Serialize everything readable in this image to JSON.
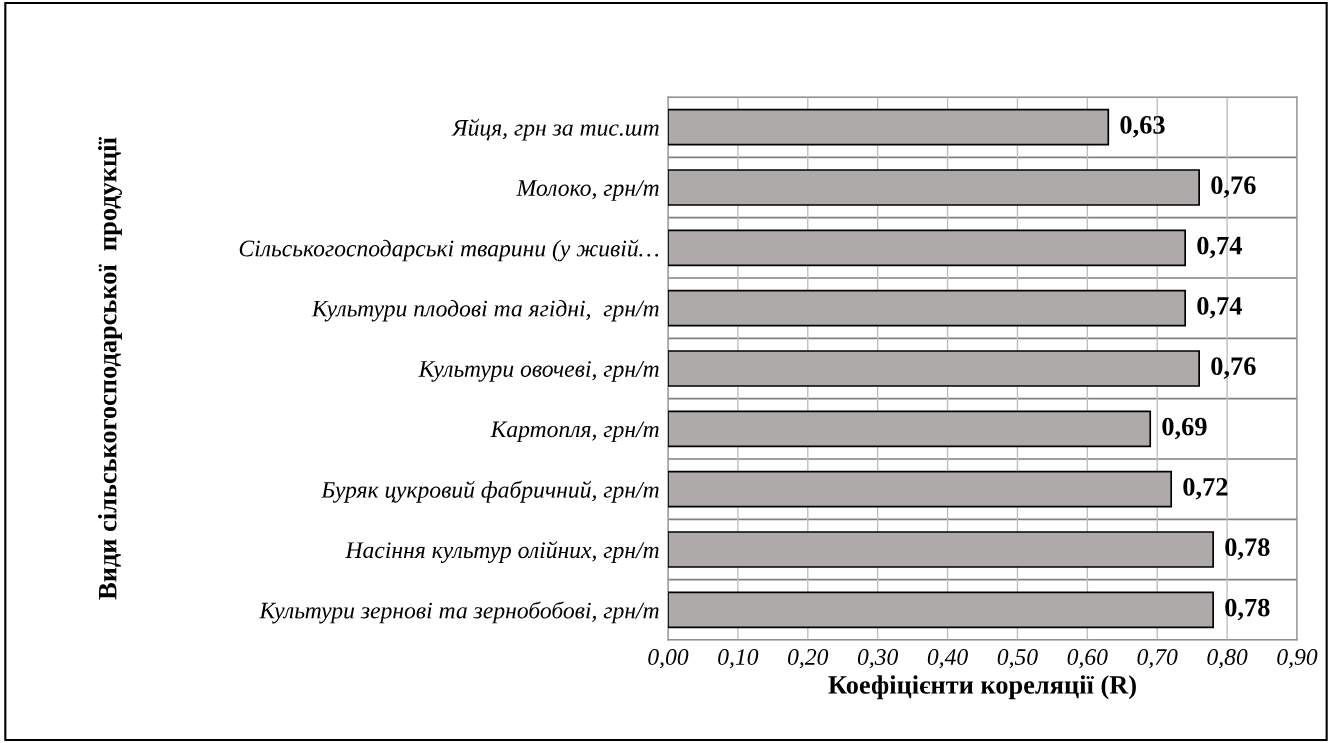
{
  "chart_data": {
    "type": "bar",
    "orientation": "horizontal",
    "xlabel": "Коефіцієнти кореляції (R)",
    "ylabel": "Види сільськогосподарської  продукції",
    "categories": [
      "Яйця, грн за тис.шт",
      "Молоко, грн/т",
      "Сільськогосподарські тварини (у живій…",
      "Культури плодові та ягідні,  грн/т",
      "Культури овочеві, грн/т",
      "Картопля, грн/т",
      "Буряк цукровий фабричний, грн/т",
      "Насіння культур олійних, грн/т",
      "Культури зернові та зернобобові, грн/т"
    ],
    "values": [
      0.63,
      0.76,
      0.74,
      0.74,
      0.76,
      0.69,
      0.72,
      0.78,
      0.78
    ],
    "value_labels": [
      "0,63",
      "0,76",
      "0,74",
      "0,74",
      "0,76",
      "0,69",
      "0,72",
      "0,78",
      "0,78"
    ],
    "color": "#aeaaaa",
    "xlim": [
      0,
      0.9
    ],
    "xticks": [
      {
        "value": 0,
        "label": "0,00"
      },
      {
        "value": 0.1,
        "label": "0,10"
      },
      {
        "value": 0.2,
        "label": "0,20"
      },
      {
        "value": 0.3,
        "label": "0,30"
      },
      {
        "value": 0.4,
        "label": "0,40"
      },
      {
        "value": 0.5,
        "label": "0,50"
      },
      {
        "value": 0.6,
        "label": "0,60"
      },
      {
        "value": 0.7,
        "label": "0,70"
      },
      {
        "value": 0.8,
        "label": "0,80"
      },
      {
        "value": 0.9,
        "label": "0,90"
      }
    ],
    "grid": true,
    "legend": false
  }
}
